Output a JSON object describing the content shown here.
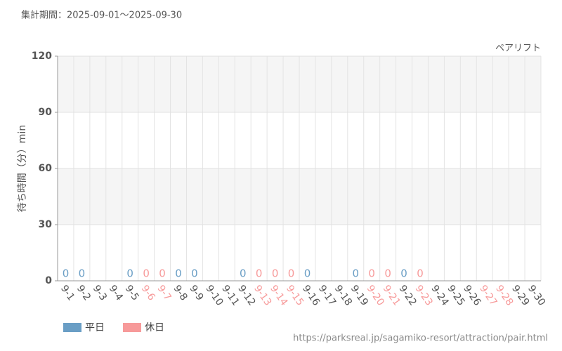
{
  "header": "集計期間：2025-09-01～2025-09-30",
  "footer": "https://parksreal.jp/sagamiko-resort/attraction/pair.html",
  "chart_data": {
    "type": "bar",
    "title": "ペアリフト",
    "y_label": "待ち時間（分）min",
    "categories": [
      "9-1",
      "9-2",
      "9-3",
      "9-4",
      "9-5",
      "9-6",
      "9-7",
      "9-8",
      "9-9",
      "9-10",
      "9-11",
      "9-12",
      "9-13",
      "9-14",
      "9-15",
      "9-16",
      "9-17",
      "9-18",
      "9-19",
      "9-20",
      "9-21",
      "9-22",
      "9-23",
      "9-24",
      "9-25",
      "9-26",
      "9-27",
      "9-28",
      "9-29",
      "9-30"
    ],
    "category_colors": [
      "#555",
      "#555",
      "#555",
      "#555",
      "#555",
      "#f79a9a",
      "#f79a9a",
      "#555",
      "#555",
      "#555",
      "#555",
      "#555",
      "#f79a9a",
      "#f79a9a",
      "#f79a9a",
      "#555",
      "#555",
      "#555",
      "#555",
      "#f79a9a",
      "#f79a9a",
      "#555",
      "#f79a9a",
      "#555",
      "#555",
      "#555",
      "#f79a9a",
      "#f79a9a",
      "#555",
      "#555"
    ],
    "series": [
      {
        "name": "平日",
        "color": "#6a9ec5",
        "values": [
          0,
          0,
          null,
          null,
          0,
          null,
          null,
          0,
          0,
          null,
          null,
          0,
          null,
          null,
          null,
          0,
          null,
          null,
          0,
          null,
          null,
          0,
          null,
          null,
          null,
          null,
          null,
          null,
          null,
          null
        ]
      },
      {
        "name": "休日",
        "color": "#f79a9a",
        "values": [
          null,
          null,
          null,
          null,
          null,
          0,
          0,
          null,
          null,
          null,
          null,
          null,
          0,
          0,
          0,
          null,
          null,
          null,
          null,
          0,
          0,
          null,
          0,
          null,
          null,
          null,
          null,
          null,
          null,
          null
        ]
      }
    ],
    "ylim": [
      0,
      120
    ],
    "yticks": [
      0,
      30,
      60,
      90,
      120
    ],
    "grid": true
  }
}
